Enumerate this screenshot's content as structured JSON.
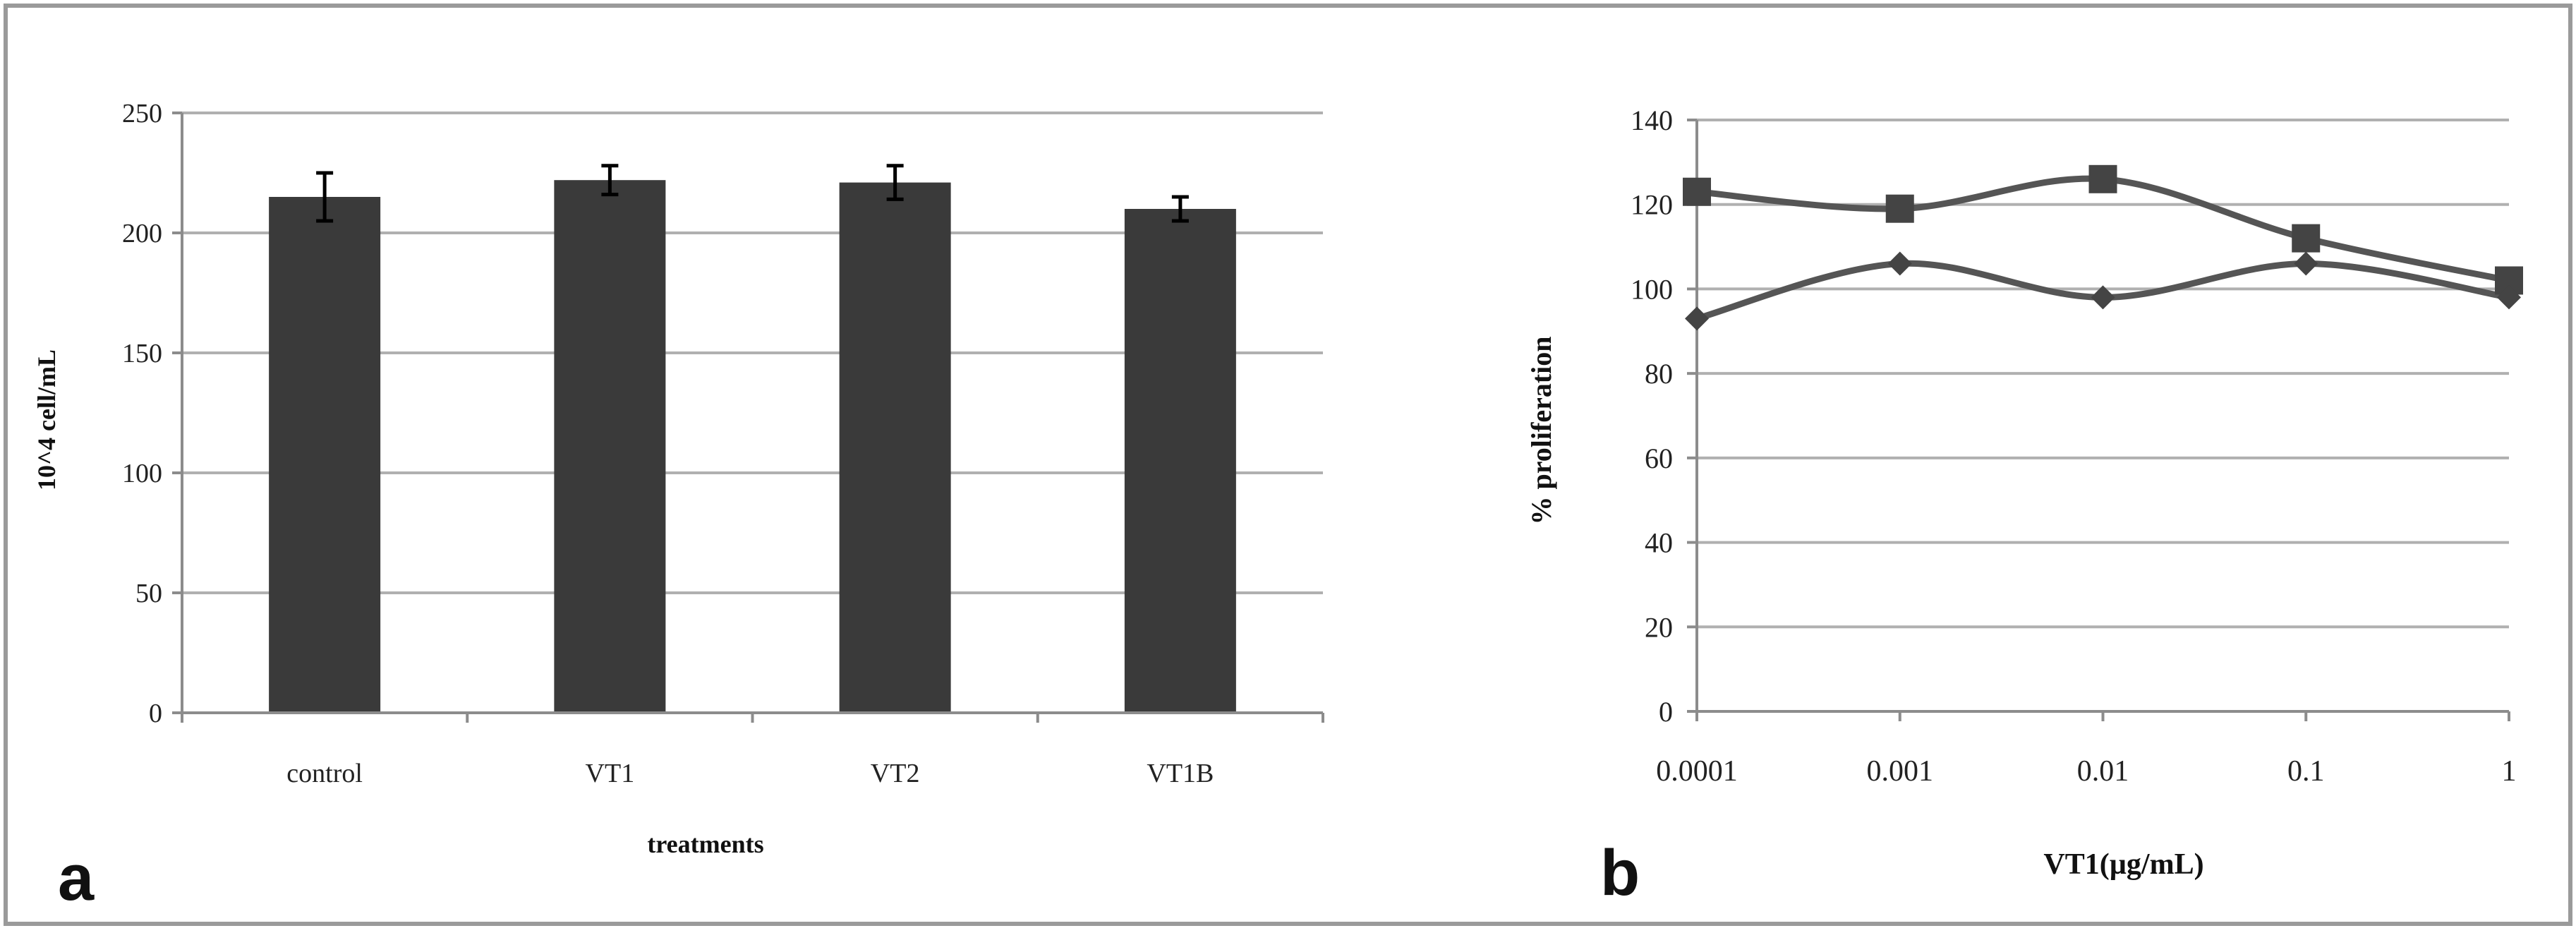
{
  "chart_data": [
    {
      "panel_label": "a",
      "type": "bar",
      "categories": [
        "control",
        "VT1",
        "VT2",
        "VT1B"
      ],
      "values": [
        215,
        222,
        221,
        210
      ],
      "errors": [
        10,
        6,
        7,
        5
      ],
      "xlabel": "treatments",
      "ylabel": "10^4 cell/mL",
      "ylim": [
        0,
        250
      ],
      "yticks": [
        "0",
        "50",
        "100",
        "150",
        "200",
        "250"
      ],
      "grid": true,
      "colors": {
        "bar": "#3a3a3a",
        "grid": "#b0b0b0",
        "axis": "#8c8c8c"
      }
    },
    {
      "panel_label": "b",
      "type": "line",
      "x": [
        "0.0001",
        "0.001",
        "0.01",
        "0.1",
        "1"
      ],
      "series": [
        {
          "marker": "square",
          "values": [
            123,
            119,
            126,
            112,
            102
          ]
        },
        {
          "marker": "diamond",
          "values": [
            93,
            106,
            98,
            106,
            98
          ]
        }
      ],
      "xlabel": "VT1(µg/mL)",
      "ylabel": "% proliferation",
      "ylim": [
        0,
        140
      ],
      "yticks": [
        "0",
        "20",
        "40",
        "60",
        "80",
        "100",
        "120",
        "140"
      ],
      "grid": true,
      "colors": {
        "line": "#555555",
        "marker": "#444444",
        "grid": "#b0b0b0",
        "axis": "#8c8c8c"
      }
    }
  ]
}
